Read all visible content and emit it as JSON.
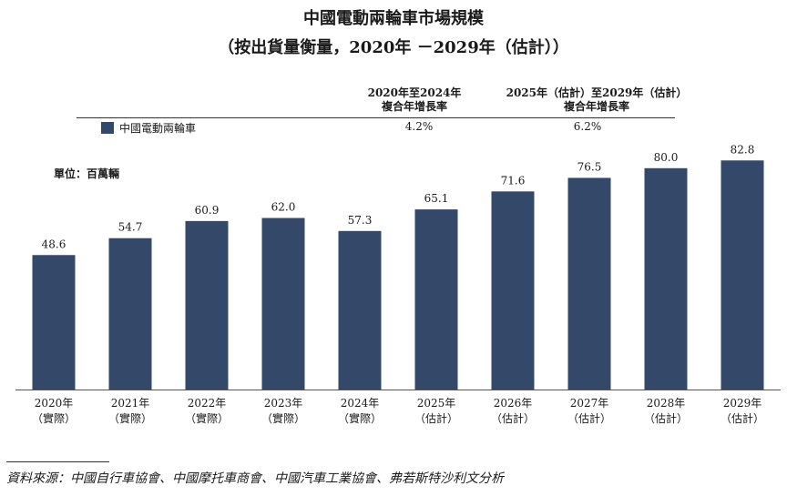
{
  "title": "中國電動兩輪車市場規模",
  "subtitle": "（按出貨量衡量，2020年 －2029年（估計））",
  "cagr_table": {
    "headers": [
      [
        "2020年至2024年",
        "複合年增長率"
      ],
      [
        "2025年（估計）至2029年（估計）",
        "複合年增長率"
      ]
    ],
    "legend_label": "中國電動兩輪車",
    "legend_color": "#34496a",
    "values": [
      "4.2%",
      "6.2%"
    ]
  },
  "unit": "單位：百萬輛",
  "chart_data": {
    "type": "bar",
    "categories": [
      [
        "2020年",
        "（實際）"
      ],
      [
        "2021年",
        "（實際）"
      ],
      [
        "2022年",
        "（實際）"
      ],
      [
        "2023年",
        "（實際）"
      ],
      [
        "2024年",
        "（實際）"
      ],
      [
        "2025年",
        "（估計）"
      ],
      [
        "2026年",
        "（估計）"
      ],
      [
        "2027年",
        "（估計）"
      ],
      [
        "2028年",
        "（估計）"
      ],
      [
        "2029年",
        "（估計）"
      ]
    ],
    "series": [
      {
        "name": "中國電動兩輪車",
        "values": [
          48.6,
          54.7,
          60.9,
          62.0,
          57.3,
          65.1,
          71.6,
          76.5,
          80.0,
          82.8
        ]
      }
    ],
    "data_labels": [
      "48.6",
      "54.7",
      "60.9",
      "62.0",
      "57.3",
      "65.1",
      "71.6",
      "76.5",
      "80.0",
      "82.8"
    ],
    "color": "#34496a",
    "ylim": [
      0,
      100
    ],
    "grid": false,
    "legend": "top-left"
  },
  "source": "資料來源：中國自行車協會、中國摩托車商會、中國汽車工業協會、弗若斯特沙利文分析"
}
